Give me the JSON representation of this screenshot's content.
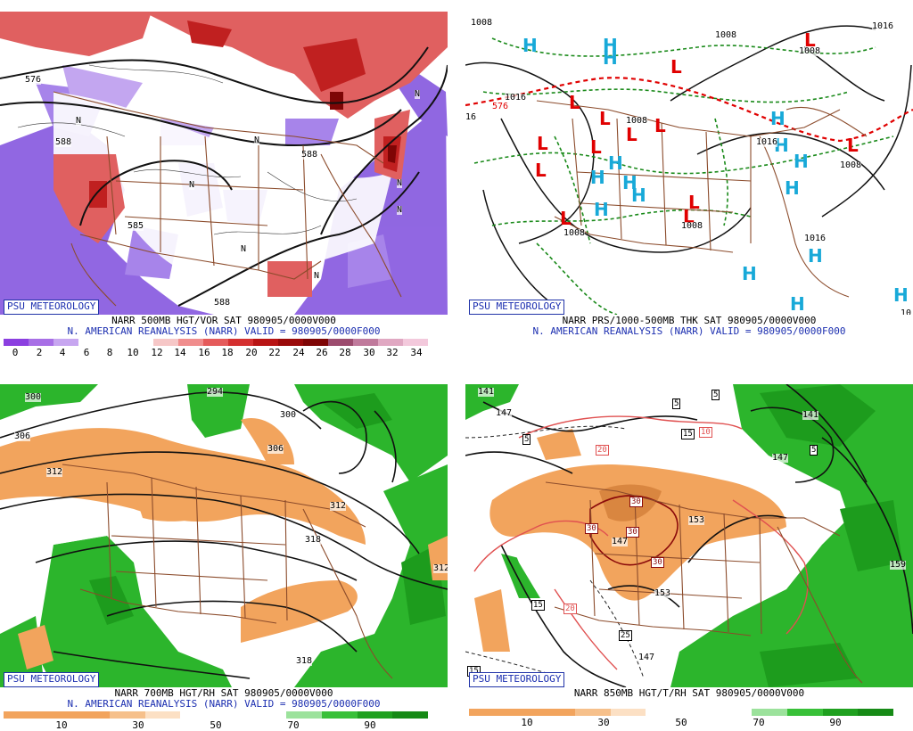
{
  "brand": "PSU METEOROLOGY",
  "panels": {
    "tl": {
      "caption1": "NARR 500MB HGT/VOR SAT 980905/0000V000",
      "caption2": "N. AMERICAN REANALYSIS (NARR) VALID = 980905/0000F000",
      "colorbar": {
        "colors": [
          "#8b3fe0",
          "#a86fe6",
          "#c7a6f0",
          "#ffffff",
          "#ffffff",
          "#ffffff",
          "#f6c7c7",
          "#f08d8d",
          "#e55b5b",
          "#d43030",
          "#b81414",
          "#9a0a0a",
          "#7e0505",
          "#9c4b6e",
          "#c07a9c",
          "#e0a8c2",
          "#f3c9dc"
        ],
        "ticks": [
          "0",
          "2",
          "4",
          "6",
          "8",
          "10",
          "12",
          "14",
          "16",
          "18",
          "20",
          "22",
          "24",
          "26",
          "28",
          "30",
          "32",
          "34"
        ]
      },
      "contour_labels": [
        "576",
        "588",
        "588",
        "585",
        "588"
      ],
      "vorticity_marks": [
        "N",
        "N",
        "N",
        "N",
        "N",
        "N",
        "N",
        "N"
      ]
    },
    "tr": {
      "caption1": "NARR PRS/1000-500MB THK SAT 980905/0000V000",
      "caption2": "N. AMERICAN REANALYSIS (NARR) VALID = 980905/0000F000",
      "low_marker": "L",
      "high_marker": "H",
      "contour_labels": [
        "1008",
        "1016",
        "1008",
        "1008",
        "1016",
        "1008",
        "1008",
        "1008",
        "1016",
        "576",
        "16",
        "10",
        "1008",
        "1016"
      ]
    },
    "bl": {
      "caption1": "NARR 700MB HGT/RH SAT 980905/0000V000",
      "caption2": "N. AMERICAN REANALYSIS (NARR) VALID = 980905/0000F000",
      "colorbar": {
        "colors": [
          "#f2a45d",
          "#f2a45d",
          "#f2a45d",
          "#f6c08b",
          "#fce0c4",
          "#ffffff",
          "#ffffff",
          "#ffffff",
          "#9ce29c",
          "#38c038",
          "#1fa01f",
          "#168a16"
        ],
        "ticks": [
          "10",
          "30",
          "50",
          "70",
          "90"
        ]
      },
      "contour_labels": [
        "300",
        "306",
        "312",
        "294",
        "300",
        "306",
        "312",
        "318",
        "318",
        "312"
      ]
    },
    "br": {
      "caption1": "NARR 850MB HGT/T/RH SAT 980905/0000V000",
      "caption2": "N. AMERICAN REANALYSIS (NARR) VALID = 980905/0000F000",
      "colorbar": {
        "colors": [
          "#f2a45d",
          "#f2a45d",
          "#f2a45d",
          "#f6c08b",
          "#fce0c4",
          "#ffffff",
          "#ffffff",
          "#ffffff",
          "#9ce29c",
          "#38c038",
          "#1fa01f",
          "#168a16"
        ],
        "ticks": [
          "10",
          "30",
          "50",
          "70",
          "90"
        ]
      },
      "contour_labels": [
        "141",
        "147",
        "141",
        "147",
        "153",
        "147",
        "153",
        "159",
        "147"
      ],
      "temp_boxes": [
        "5",
        "5",
        "5",
        "5",
        "15",
        "10",
        "20",
        "30",
        "30",
        "30",
        "30",
        "15",
        "20",
        "25",
        "15",
        "5"
      ]
    }
  }
}
